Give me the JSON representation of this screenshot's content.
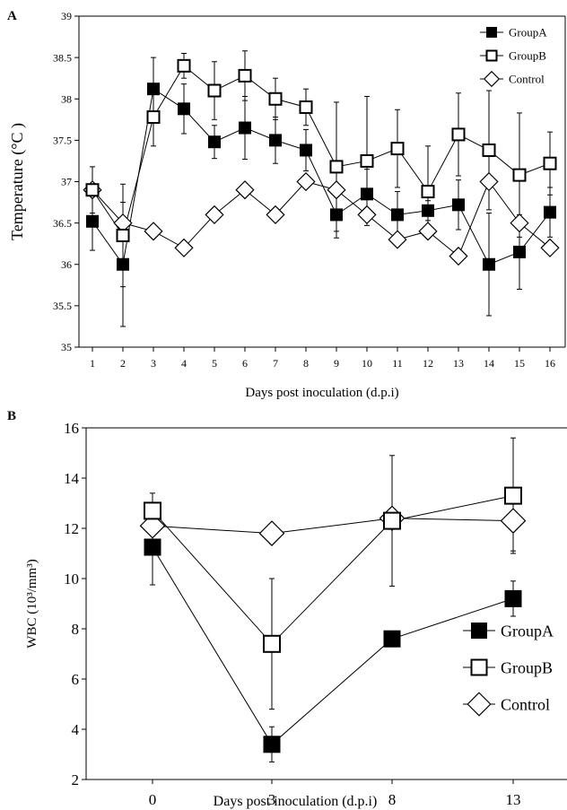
{
  "chart_data": [
    {
      "panel_label": "A",
      "type": "line",
      "xlabel": "Days post inoculation (d.p.i)",
      "ylabel": "Temperature (°C )",
      "x": [
        1,
        2,
        3,
        4,
        5,
        6,
        7,
        8,
        9,
        10,
        11,
        12,
        13,
        14,
        15,
        16
      ],
      "x_ticks": [
        "1",
        "2",
        "3",
        "4",
        "5",
        "6",
        "7",
        "8",
        "9",
        "10",
        "11",
        "12",
        "13",
        "14",
        "15",
        "16"
      ],
      "ylim": [
        35,
        39
      ],
      "y_ticks": [
        "35",
        "35.5",
        "36",
        "36.5",
        "37",
        "37.5",
        "38",
        "38.5",
        "39"
      ],
      "grid": false,
      "legend_position": "top-right",
      "series": [
        {
          "name": "GroupA",
          "marker": "filled-square",
          "values": [
            36.52,
            36.0,
            38.12,
            37.88,
            37.48,
            37.65,
            37.5,
            37.38,
            36.6,
            36.85,
            36.6,
            36.65,
            36.72,
            36.0,
            36.15,
            36.63
          ],
          "error": [
            0.35,
            0.75,
            0.38,
            0.3,
            0.2,
            0.38,
            0.28,
            0.25,
            0.28,
            0.3,
            0.28,
            0.12,
            0.3,
            0.62,
            0.45,
            0.3
          ]
        },
        {
          "name": "GroupB",
          "marker": "open-square",
          "values": [
            36.9,
            36.35,
            37.78,
            38.4,
            38.1,
            38.28,
            38.0,
            37.9,
            37.18,
            37.25,
            37.4,
            36.88,
            37.57,
            37.38,
            37.08,
            37.22
          ],
          "error": [
            0.28,
            0.62,
            0.35,
            0.15,
            0.35,
            0.3,
            0.25,
            0.22,
            0.78,
            0.78,
            0.47,
            0.55,
            0.5,
            0.72,
            0.75,
            0.38
          ]
        },
        {
          "name": "Control",
          "marker": "open-diamond",
          "values": [
            36.9,
            36.5,
            36.4,
            36.2,
            36.6,
            36.9,
            36.6,
            37.0,
            36.9,
            36.6,
            36.3,
            36.4,
            36.1,
            37.0,
            36.5,
            36.2
          ],
          "error": [
            0,
            0,
            0,
            0,
            0,
            0,
            0,
            0,
            0,
            0,
            0,
            0,
            0,
            0,
            0,
            0
          ]
        }
      ]
    },
    {
      "panel_label": "B",
      "type": "line",
      "xlabel": "Days post inoculation (d.p.i)",
      "ylabel": "WBC (10³/mm³)",
      "x": [
        0,
        3,
        8,
        13
      ],
      "x_ticks": [
        "0",
        "3",
        "8",
        "13"
      ],
      "ylim": [
        2,
        16
      ],
      "y_ticks": [
        "2",
        "4",
        "6",
        "8",
        "10",
        "12",
        "14",
        "16"
      ],
      "grid": false,
      "legend_position": "bottom-right",
      "series": [
        {
          "name": "GroupA",
          "marker": "filled-square",
          "values": [
            11.25,
            3.4,
            7.6,
            9.2
          ],
          "error": [
            1.5,
            0.7,
            0,
            0.7
          ]
        },
        {
          "name": "GroupB",
          "marker": "open-square",
          "values": [
            12.7,
            7.4,
            12.3,
            13.3
          ],
          "error": [
            0.7,
            2.6,
            2.6,
            2.3
          ]
        },
        {
          "name": "Control",
          "marker": "open-diamond",
          "values": [
            12.1,
            11.8,
            12.4,
            12.3
          ],
          "error": [
            0,
            0,
            0,
            1.2
          ]
        }
      ]
    }
  ]
}
